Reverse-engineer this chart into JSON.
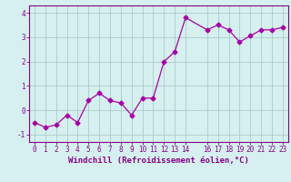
{
  "x": [
    0,
    1,
    2,
    3,
    4,
    5,
    6,
    7,
    8,
    9,
    10,
    11,
    12,
    13,
    14,
    16,
    17,
    18,
    19,
    20,
    21,
    22,
    23
  ],
  "y": [
    -0.5,
    -0.7,
    -0.6,
    -0.2,
    -0.5,
    0.4,
    0.7,
    0.4,
    0.3,
    -0.2,
    0.5,
    0.5,
    2.0,
    2.4,
    3.8,
    3.3,
    3.5,
    3.3,
    2.8,
    3.05,
    3.3,
    3.3,
    3.4
  ],
  "line_color": "#aa00aa",
  "marker": "D",
  "markersize": 2.5,
  "linewidth": 0.9,
  "bg_color": "#d5f0ee",
  "grid_color": "#aacccc",
  "xlabel": "Windchill (Refroidissement éolien,°C)",
  "ylabel": "",
  "yticks": [
    -1,
    0,
    1,
    2,
    3,
    4
  ],
  "xticks": [
    0,
    1,
    2,
    3,
    4,
    5,
    6,
    7,
    8,
    9,
    10,
    11,
    12,
    13,
    14,
    16,
    17,
    18,
    19,
    20,
    21,
    22,
    23
  ],
  "xlim": [
    -0.5,
    23.5
  ],
  "ylim": [
    -1.3,
    4.3
  ],
  "xlabel_fontsize": 6.5,
  "tick_fontsize": 5.5,
  "axis_color": "#880088",
  "spine_color": "#880088",
  "grid_linewidth": 0.6
}
